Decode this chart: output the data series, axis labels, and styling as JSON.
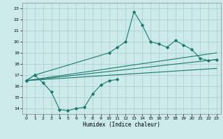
{
  "xlabel": "Humidex (Indice chaleur)",
  "xlim": [
    -0.5,
    23.5
  ],
  "ylim": [
    13.5,
    23.5
  ],
  "background_color": "#cceaea",
  "grid_color": "#aacccc",
  "line_color": "#1a7a6e",
  "xticks": [
    0,
    1,
    2,
    3,
    4,
    5,
    6,
    7,
    8,
    9,
    10,
    11,
    12,
    13,
    14,
    15,
    16,
    17,
    18,
    19,
    20,
    21,
    22,
    23
  ],
  "yticks": [
    14,
    15,
    16,
    17,
    18,
    19,
    20,
    21,
    22,
    23
  ],
  "curve1_x": [
    0,
    1,
    2,
    3,
    4,
    5,
    6,
    7,
    8,
    9,
    10,
    11
  ],
  "curve1_y": [
    16.5,
    17.0,
    16.3,
    15.5,
    13.9,
    13.8,
    14.0,
    14.1,
    15.3,
    16.1,
    16.5,
    16.6
  ],
  "curve2_x": [
    0,
    1,
    10,
    11,
    12,
    13,
    14,
    15,
    16,
    17,
    18,
    19,
    20,
    21,
    22,
    23
  ],
  "curve2_y": [
    16.5,
    17.0,
    19.0,
    19.5,
    20.0,
    22.7,
    21.5,
    20.0,
    19.8,
    19.5,
    20.1,
    19.7,
    19.3,
    18.5,
    18.3,
    18.4
  ],
  "trend1_x": [
    0,
    23
  ],
  "trend1_y": [
    16.5,
    18.4
  ],
  "trend2_x": [
    0,
    23
  ],
  "trend2_y": [
    16.5,
    17.6
  ],
  "trend3_x": [
    0,
    23
  ],
  "trend3_y": [
    16.5,
    19.0
  ]
}
